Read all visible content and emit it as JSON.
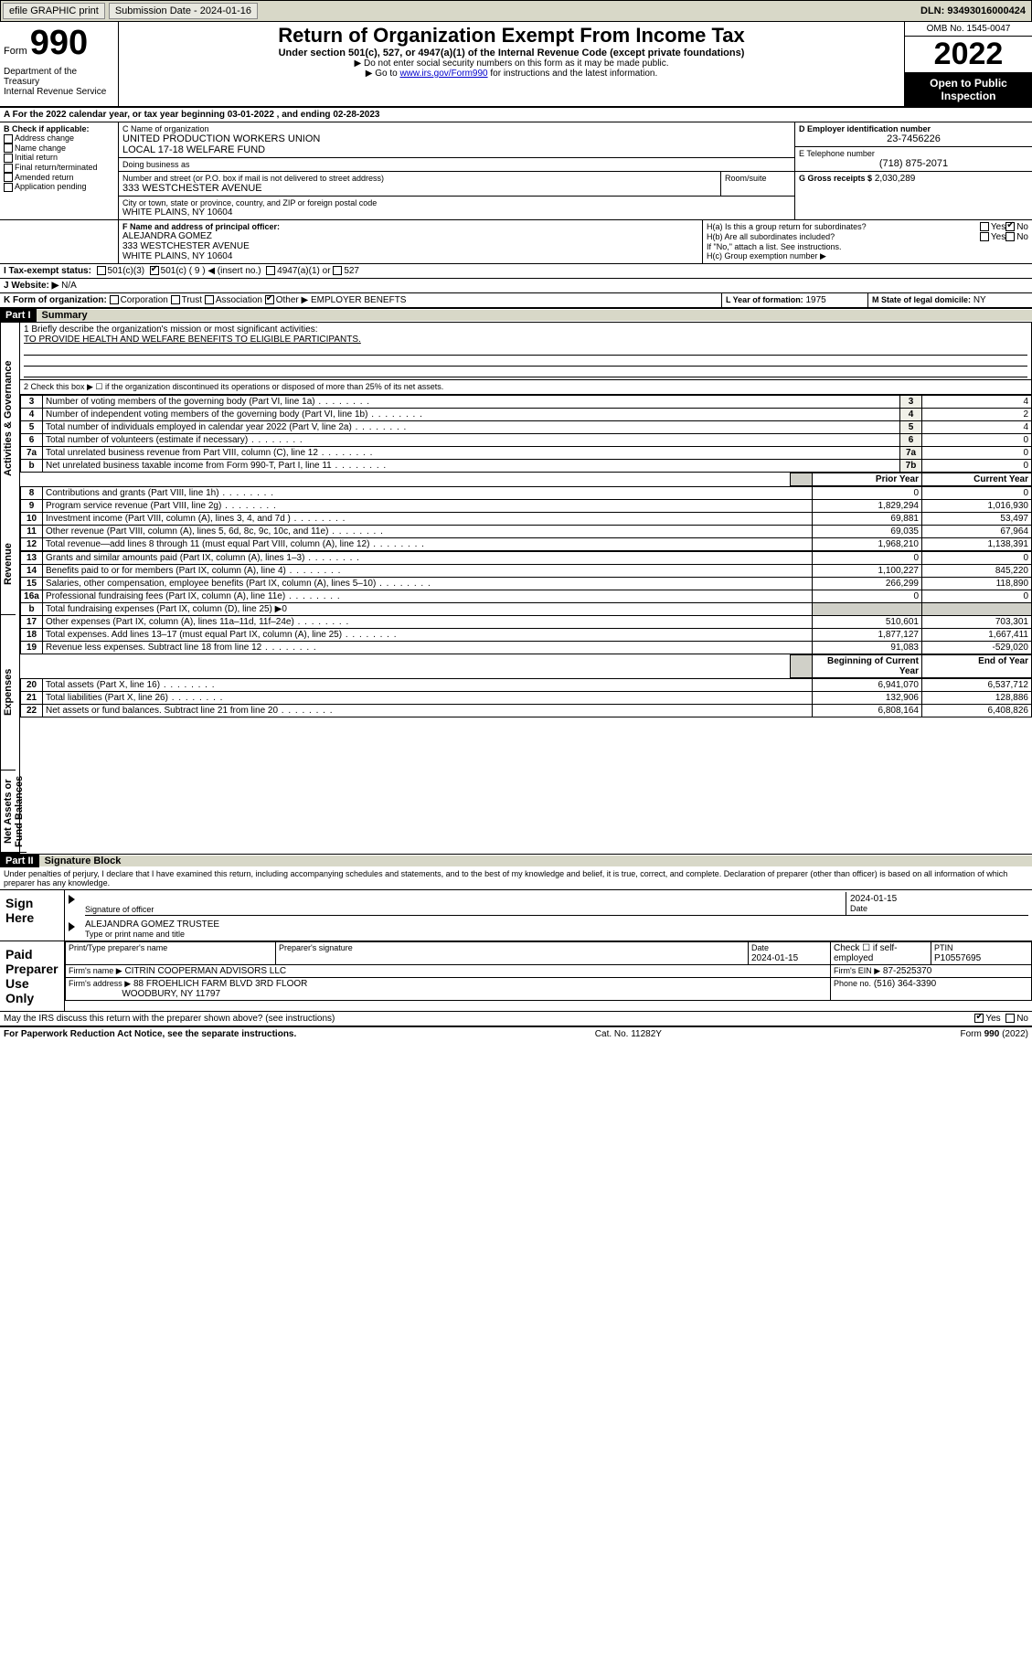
{
  "topbar": {
    "efile": "efile GRAPHIC print",
    "subdate_label": "Submission Date - 2024-01-16",
    "dln": "DLN: 93493016000424"
  },
  "header": {
    "form_word": "Form",
    "form_num": "990",
    "title": "Return of Organization Exempt From Income Tax",
    "subtitle": "Under section 501(c), 527, or 4947(a)(1) of the Internal Revenue Code (except private foundations)",
    "instr1": "▶ Do not enter social security numbers on this form as it may be made public.",
    "instr2_pre": "▶ Go to ",
    "instr2_link": "www.irs.gov/Form990",
    "instr2_post": " for instructions and the latest information.",
    "dept": "Department of the Treasury\nInternal Revenue Service",
    "omb": "OMB No. 1545-0047",
    "year": "2022",
    "inspection": "Open to Public Inspection"
  },
  "period": {
    "line_a": "A For the 2022 calendar year, or tax year beginning 03-01-2022   , and ending 02-28-2023"
  },
  "box_b": {
    "label": "B Check if applicable:",
    "items": [
      "Address change",
      "Name change",
      "Initial return",
      "Final return/terminated",
      "Amended return",
      "Application pending"
    ]
  },
  "box_c": {
    "name_label": "C Name of organization",
    "name": "UNITED PRODUCTION WORKERS UNION\nLOCAL 17-18 WELFARE FUND",
    "dba_label": "Doing business as",
    "dba": "",
    "street_label": "Number and street (or P.O. box if mail is not delivered to street address)",
    "room_label": "Room/suite",
    "street": "333 WESTCHESTER AVENUE",
    "city_label": "City or town, state or province, country, and ZIP or foreign postal code",
    "city": "WHITE PLAINS, NY  10604"
  },
  "box_d": {
    "label": "D Employer identification number",
    "val": "23-7456226"
  },
  "box_e": {
    "label": "E Telephone number",
    "val": "(718) 875-2071"
  },
  "box_g": {
    "label": "G Gross receipts $",
    "val": "2,030,289"
  },
  "box_f": {
    "label": "F Name and address of principal officer:",
    "name": "ALEJANDRA GOMEZ",
    "addr1": "333 WESTCHESTER AVENUE",
    "addr2": "WHITE PLAINS, NY  10604"
  },
  "box_h": {
    "ha": "H(a)  Is this a group return for subordinates?",
    "hb": "H(b)  Are all subordinates included?",
    "hb_note": "If \"No,\" attach a list. See instructions.",
    "hc": "H(c)  Group exemption number ▶",
    "yes": "Yes",
    "no": "No"
  },
  "box_i": {
    "label": "I  Tax-exempt status:",
    "c3": "501(c)(3)",
    "c": "501(c) ( 9 ) ◀ (insert no.)",
    "a1": "4947(a)(1) or",
    "527": "527"
  },
  "box_j": {
    "label": "J  Website: ▶",
    "val": "N/A"
  },
  "box_k": {
    "label": "K Form of organization:",
    "corp": "Corporation",
    "trust": "Trust",
    "assoc": "Association",
    "other": "Other ▶",
    "other_val": "EMPLOYER BENEFTS"
  },
  "box_l": {
    "label": "L Year of formation:",
    "val": "1975"
  },
  "box_m": {
    "label": "M State of legal domicile:",
    "val": "NY"
  },
  "part1": {
    "header": "Part I",
    "title": "Summary"
  },
  "summary": {
    "q1_label": "1  Briefly describe the organization's mission or most significant activities:",
    "q1_val": "TO PROVIDE HEALTH AND WELFARE BENEFITS TO ELIGIBLE PARTICIPANTS.",
    "q2": "2  Check this box ▶ ☐  if the organization discontinued its operations or disposed of more than 25% of its net assets.",
    "rows_gov": [
      {
        "n": "3",
        "t": "Number of voting members of the governing body (Part VI, line 1a)",
        "r": "3",
        "v": "4"
      },
      {
        "n": "4",
        "t": "Number of independent voting members of the governing body (Part VI, line 1b)",
        "r": "4",
        "v": "2"
      },
      {
        "n": "5",
        "t": "Total number of individuals employed in calendar year 2022 (Part V, line 2a)",
        "r": "5",
        "v": "4"
      },
      {
        "n": "6",
        "t": "Total number of volunteers (estimate if necessary)",
        "r": "6",
        "v": "0"
      },
      {
        "n": "7a",
        "t": "Total unrelated business revenue from Part VIII, column (C), line 12",
        "r": "7a",
        "v": "0"
      },
      {
        "n": "b",
        "t": "Net unrelated business taxable income from Form 990-T, Part I, line 11",
        "r": "7b",
        "v": "0"
      }
    ],
    "prior_h": "Prior Year",
    "curr_h": "Current Year",
    "rev": [
      {
        "n": "8",
        "t": "Contributions and grants (Part VIII, line 1h)",
        "p": "0",
        "c": "0"
      },
      {
        "n": "9",
        "t": "Program service revenue (Part VIII, line 2g)",
        "p": "1,829,294",
        "c": "1,016,930"
      },
      {
        "n": "10",
        "t": "Investment income (Part VIII, column (A), lines 3, 4, and 7d )",
        "p": "69,881",
        "c": "53,497"
      },
      {
        "n": "11",
        "t": "Other revenue (Part VIII, column (A), lines 5, 6d, 8c, 9c, 10c, and 11e)",
        "p": "69,035",
        "c": "67,964"
      },
      {
        "n": "12",
        "t": "Total revenue—add lines 8 through 11 (must equal Part VIII, column (A), line 12)",
        "p": "1,968,210",
        "c": "1,138,391"
      }
    ],
    "exp": [
      {
        "n": "13",
        "t": "Grants and similar amounts paid (Part IX, column (A), lines 1–3)",
        "p": "0",
        "c": "0"
      },
      {
        "n": "14",
        "t": "Benefits paid to or for members (Part IX, column (A), line 4)",
        "p": "1,100,227",
        "c": "845,220"
      },
      {
        "n": "15",
        "t": "Salaries, other compensation, employee benefits (Part IX, column (A), lines 5–10)",
        "p": "266,299",
        "c": "118,890"
      },
      {
        "n": "16a",
        "t": "Professional fundraising fees (Part IX, column (A), line 11e)",
        "p": "0",
        "c": "0"
      },
      {
        "n": "b",
        "t": "Total fundraising expenses (Part IX, column (D), line 25) ▶0",
        "p": "",
        "c": "",
        "grey": true
      },
      {
        "n": "17",
        "t": "Other expenses (Part IX, column (A), lines 11a–11d, 11f–24e)",
        "p": "510,601",
        "c": "703,301"
      },
      {
        "n": "18",
        "t": "Total expenses. Add lines 13–17 (must equal Part IX, column (A), line 25)",
        "p": "1,877,127",
        "c": "1,667,411"
      },
      {
        "n": "19",
        "t": "Revenue less expenses. Subtract line 18 from line 12",
        "p": "91,083",
        "c": "-529,020"
      }
    ],
    "boy_h": "Beginning of Current Year",
    "eoy_h": "End of Year",
    "net": [
      {
        "n": "20",
        "t": "Total assets (Part X, line 16)",
        "p": "6,941,070",
        "c": "6,537,712"
      },
      {
        "n": "21",
        "t": "Total liabilities (Part X, line 26)",
        "p": "132,906",
        "c": "128,886"
      },
      {
        "n": "22",
        "t": "Net assets or fund balances. Subtract line 21 from line 20",
        "p": "6,808,164",
        "c": "6,408,826"
      }
    ],
    "side_gov": "Activities & Governance",
    "side_rev": "Revenue",
    "side_exp": "Expenses",
    "side_net": "Net Assets or Fund Balances"
  },
  "part2": {
    "header": "Part II",
    "title": "Signature Block"
  },
  "sig": {
    "decl": "Under penalties of perjury, I declare that I have examined this return, including accompanying schedules and statements, and to the best of my knowledge and belief, it is true, correct, and complete. Declaration of preparer (other than officer) is based on all information of which preparer has any knowledge.",
    "sign_here": "Sign Here",
    "sig_officer": "Signature of officer",
    "date": "Date",
    "date_val": "2024-01-15",
    "typed": "ALEJANDRA GOMEZ  TRUSTEE",
    "typed_label": "Type or print name and title",
    "paid": "Paid Preparer Use Only",
    "prep_name_h": "Print/Type preparer's name",
    "prep_sig_h": "Preparer's signature",
    "prep_date_h": "Date",
    "prep_date": "2024-01-15",
    "check_self": "Check ☐ if self-employed",
    "ptin_h": "PTIN",
    "ptin": "P10557695",
    "firm_name_l": "Firm's name    ▶",
    "firm_name": "CITRIN COOPERMAN ADVISORS LLC",
    "firm_ein_l": "Firm's EIN ▶",
    "firm_ein": "87-2525370",
    "firm_addr_l": "Firm's address ▶",
    "firm_addr1": "88 FROEHLICH FARM BLVD 3RD FLOOR",
    "firm_addr2": "WOODBURY, NY  11797",
    "phone_l": "Phone no.",
    "phone": "(516) 364-3390",
    "may": "May the IRS discuss this return with the preparer shown above? (see instructions)",
    "yes": "Yes",
    "no": "No"
  },
  "footer": {
    "left": "For Paperwork Reduction Act Notice, see the separate instructions.",
    "mid": "Cat. No. 11282Y",
    "right": "Form 990 (2022)"
  }
}
